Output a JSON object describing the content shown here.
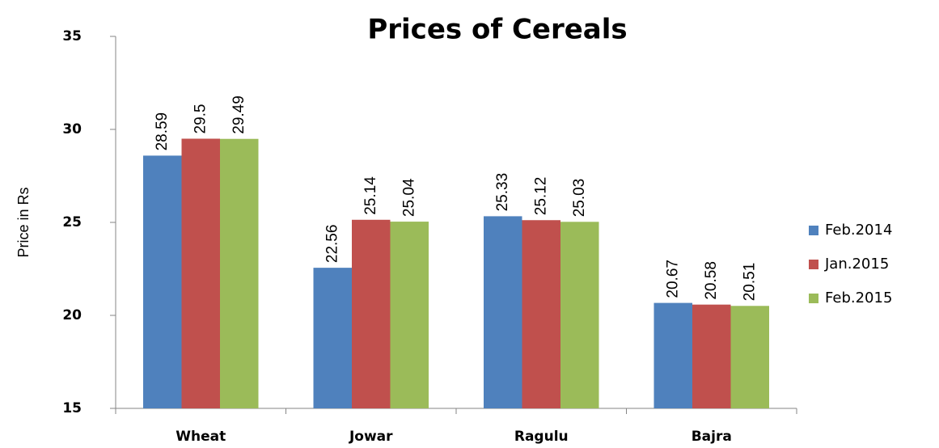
{
  "chart_data": {
    "type": "bar",
    "title": "Prices of Cereals",
    "y_label": "Price in Rs",
    "categories": [
      "Wheat",
      "Jowar",
      "Ragulu",
      "Bajra"
    ],
    "series": [
      {
        "name": "Feb.2014",
        "color": "#4f81bd",
        "values": [
          28.59,
          22.56,
          25.33,
          20.67
        ]
      },
      {
        "name": "Jan.2015",
        "color": "#c0504d",
        "values": [
          29.5,
          25.14,
          25.12,
          20.58
        ]
      },
      {
        "name": "Feb.2015",
        "color": "#9bbb59",
        "values": [
          29.49,
          25.04,
          25.03,
          20.51
        ]
      }
    ],
    "ylim": [
      15,
      35
    ],
    "yticks": [
      15,
      20,
      25,
      30,
      35
    ],
    "grid": false,
    "legend": "right"
  }
}
